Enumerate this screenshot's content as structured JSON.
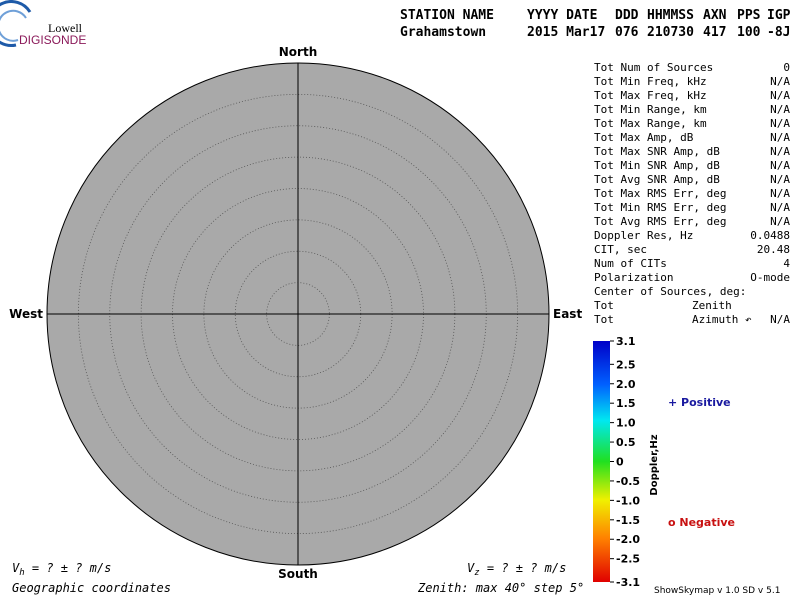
{
  "logo": {
    "top": "Lowell",
    "name": "DIGISONDE"
  },
  "header": {
    "columns": [
      "STATION NAME",
      "YYYY DATE",
      "DDD",
      "HHMMSS",
      "AXN",
      "PPS",
      "IGP"
    ],
    "values": [
      "Grahamstown",
      "2015 Mar17",
      "076",
      "210730",
      "417",
      "100",
      "-8J"
    ]
  },
  "skymap": {
    "directions": {
      "north": "North",
      "south": "South",
      "west": "West",
      "east": "East"
    }
  },
  "stats": {
    "rows": [
      {
        "label": "Tot Num of Sources",
        "value": "0"
      },
      {
        "label": "Tot Min Freq, kHz",
        "value": "N/A"
      },
      {
        "label": "Tot Max Freq, kHz",
        "value": "N/A"
      },
      {
        "label": "Tot Min Range, km",
        "value": "N/A"
      },
      {
        "label": "Tot Max Range, km",
        "value": "N/A"
      },
      {
        "label": "Tot Max Amp, dB",
        "value": "N/A"
      },
      {
        "label": "Tot Max SNR Amp, dB",
        "value": "N/A"
      },
      {
        "label": "Tot Min SNR Amp, dB",
        "value": "N/A"
      },
      {
        "label": "Tot Avg SNR Amp, dB",
        "value": "N/A"
      },
      {
        "label": "Tot Max RMS Err, deg",
        "value": "N/A"
      },
      {
        "label": "Tot Min RMS Err, deg",
        "value": "N/A"
      },
      {
        "label": "Tot Avg RMS Err, deg",
        "value": "N/A"
      },
      {
        "label": "Doppler Res, Hz",
        "value": "0.0488"
      },
      {
        "label": "CIT, sec",
        "value": "20.48"
      },
      {
        "label": "Num of CITs",
        "value": "4"
      },
      {
        "label": "Polarization",
        "value": "O-mode"
      },
      {
        "label": "Center of Sources, deg:"
      }
    ],
    "center": [
      {
        "prefix": "Tot",
        "label": "Zenith"
      },
      {
        "prefix": "Tot",
        "label": "Azimuth ↶",
        "value": "N/A"
      }
    ]
  },
  "colorbar": {
    "label": "Doppler,Hz",
    "lim": [
      -3.1,
      3.1
    ],
    "ticks": [
      {
        "value": 3.1,
        "label": "3.1"
      },
      {
        "value": 2.5,
        "label": "2.5"
      },
      {
        "value": 2,
        "label": "2.0"
      },
      {
        "value": 1.5,
        "label": "1.5"
      },
      {
        "value": 1,
        "label": "1.0"
      },
      {
        "value": 0.5,
        "label": "0.5"
      },
      0,
      {
        "value": -0.5,
        "label": "-0.5"
      },
      {
        "value": -1,
        "label": "-1.0"
      },
      {
        "value": -1.5,
        "label": "-1.5"
      },
      {
        "value": -2,
        "label": "-2.0"
      },
      {
        "value": -2.5,
        "label": "-2.5"
      },
      {
        "value": -3.1,
        "label": "-3.1"
      }
    ]
  },
  "legend": {
    "positive": "+ Positive",
    "negative": "o Negative"
  },
  "footer": {
    "vh": {
      "symbol": "V",
      "sub": "h",
      "text": " =  ? ±  ? m/s"
    },
    "vz": {
      "symbol": "V",
      "sub": "z",
      "text": " =  ? ±  ? m/s"
    },
    "coordinates": "Geographic coordinates",
    "zenith": "Zenith: max 40°  step 5°",
    "version": "ShowSkymap v 1.0  SD v 5.1"
  }
}
